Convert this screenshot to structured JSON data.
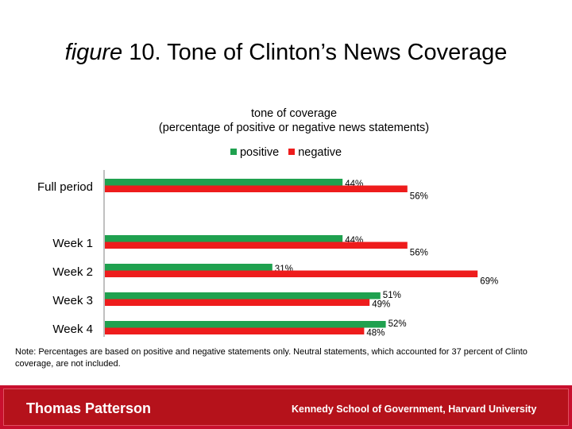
{
  "slide": {
    "title_prefix": "figure",
    "title_rest": " 10. Tone of Clinton’s News Coverage",
    "note_line1": "Note: Percentages are based on positive and negative statements only. Neutral statements, which accounted for 37 percent of Clinto",
    "note_line2": "coverage, are not included.",
    "author": "Thomas Patterson",
    "affiliation": "Kennedy School of Government, Harvard University"
  },
  "chart_data": {
    "type": "bar",
    "orientation": "horizontal",
    "title": "tone of coverage",
    "subtitle": "(percentage of positive or negative news statements)",
    "categories": [
      "Full period",
      "Week 1",
      "Week 2",
      "Week 3",
      "Week 4"
    ],
    "series": [
      {
        "name": "positive",
        "color": "#1fa14f",
        "values": [
          44,
          44,
          31,
          51,
          52
        ],
        "labels": [
          "44%",
          "44%",
          "31%",
          "51%",
          "52%"
        ]
      },
      {
        "name": "negative",
        "color": "#ee1c1c",
        "values": [
          56,
          56,
          69,
          49,
          48
        ],
        "labels": [
          "56%",
          "56%",
          "69%",
          "49%",
          "48%"
        ]
      }
    ],
    "xlim": [
      0,
      100
    ],
    "legend_position": "top"
  }
}
